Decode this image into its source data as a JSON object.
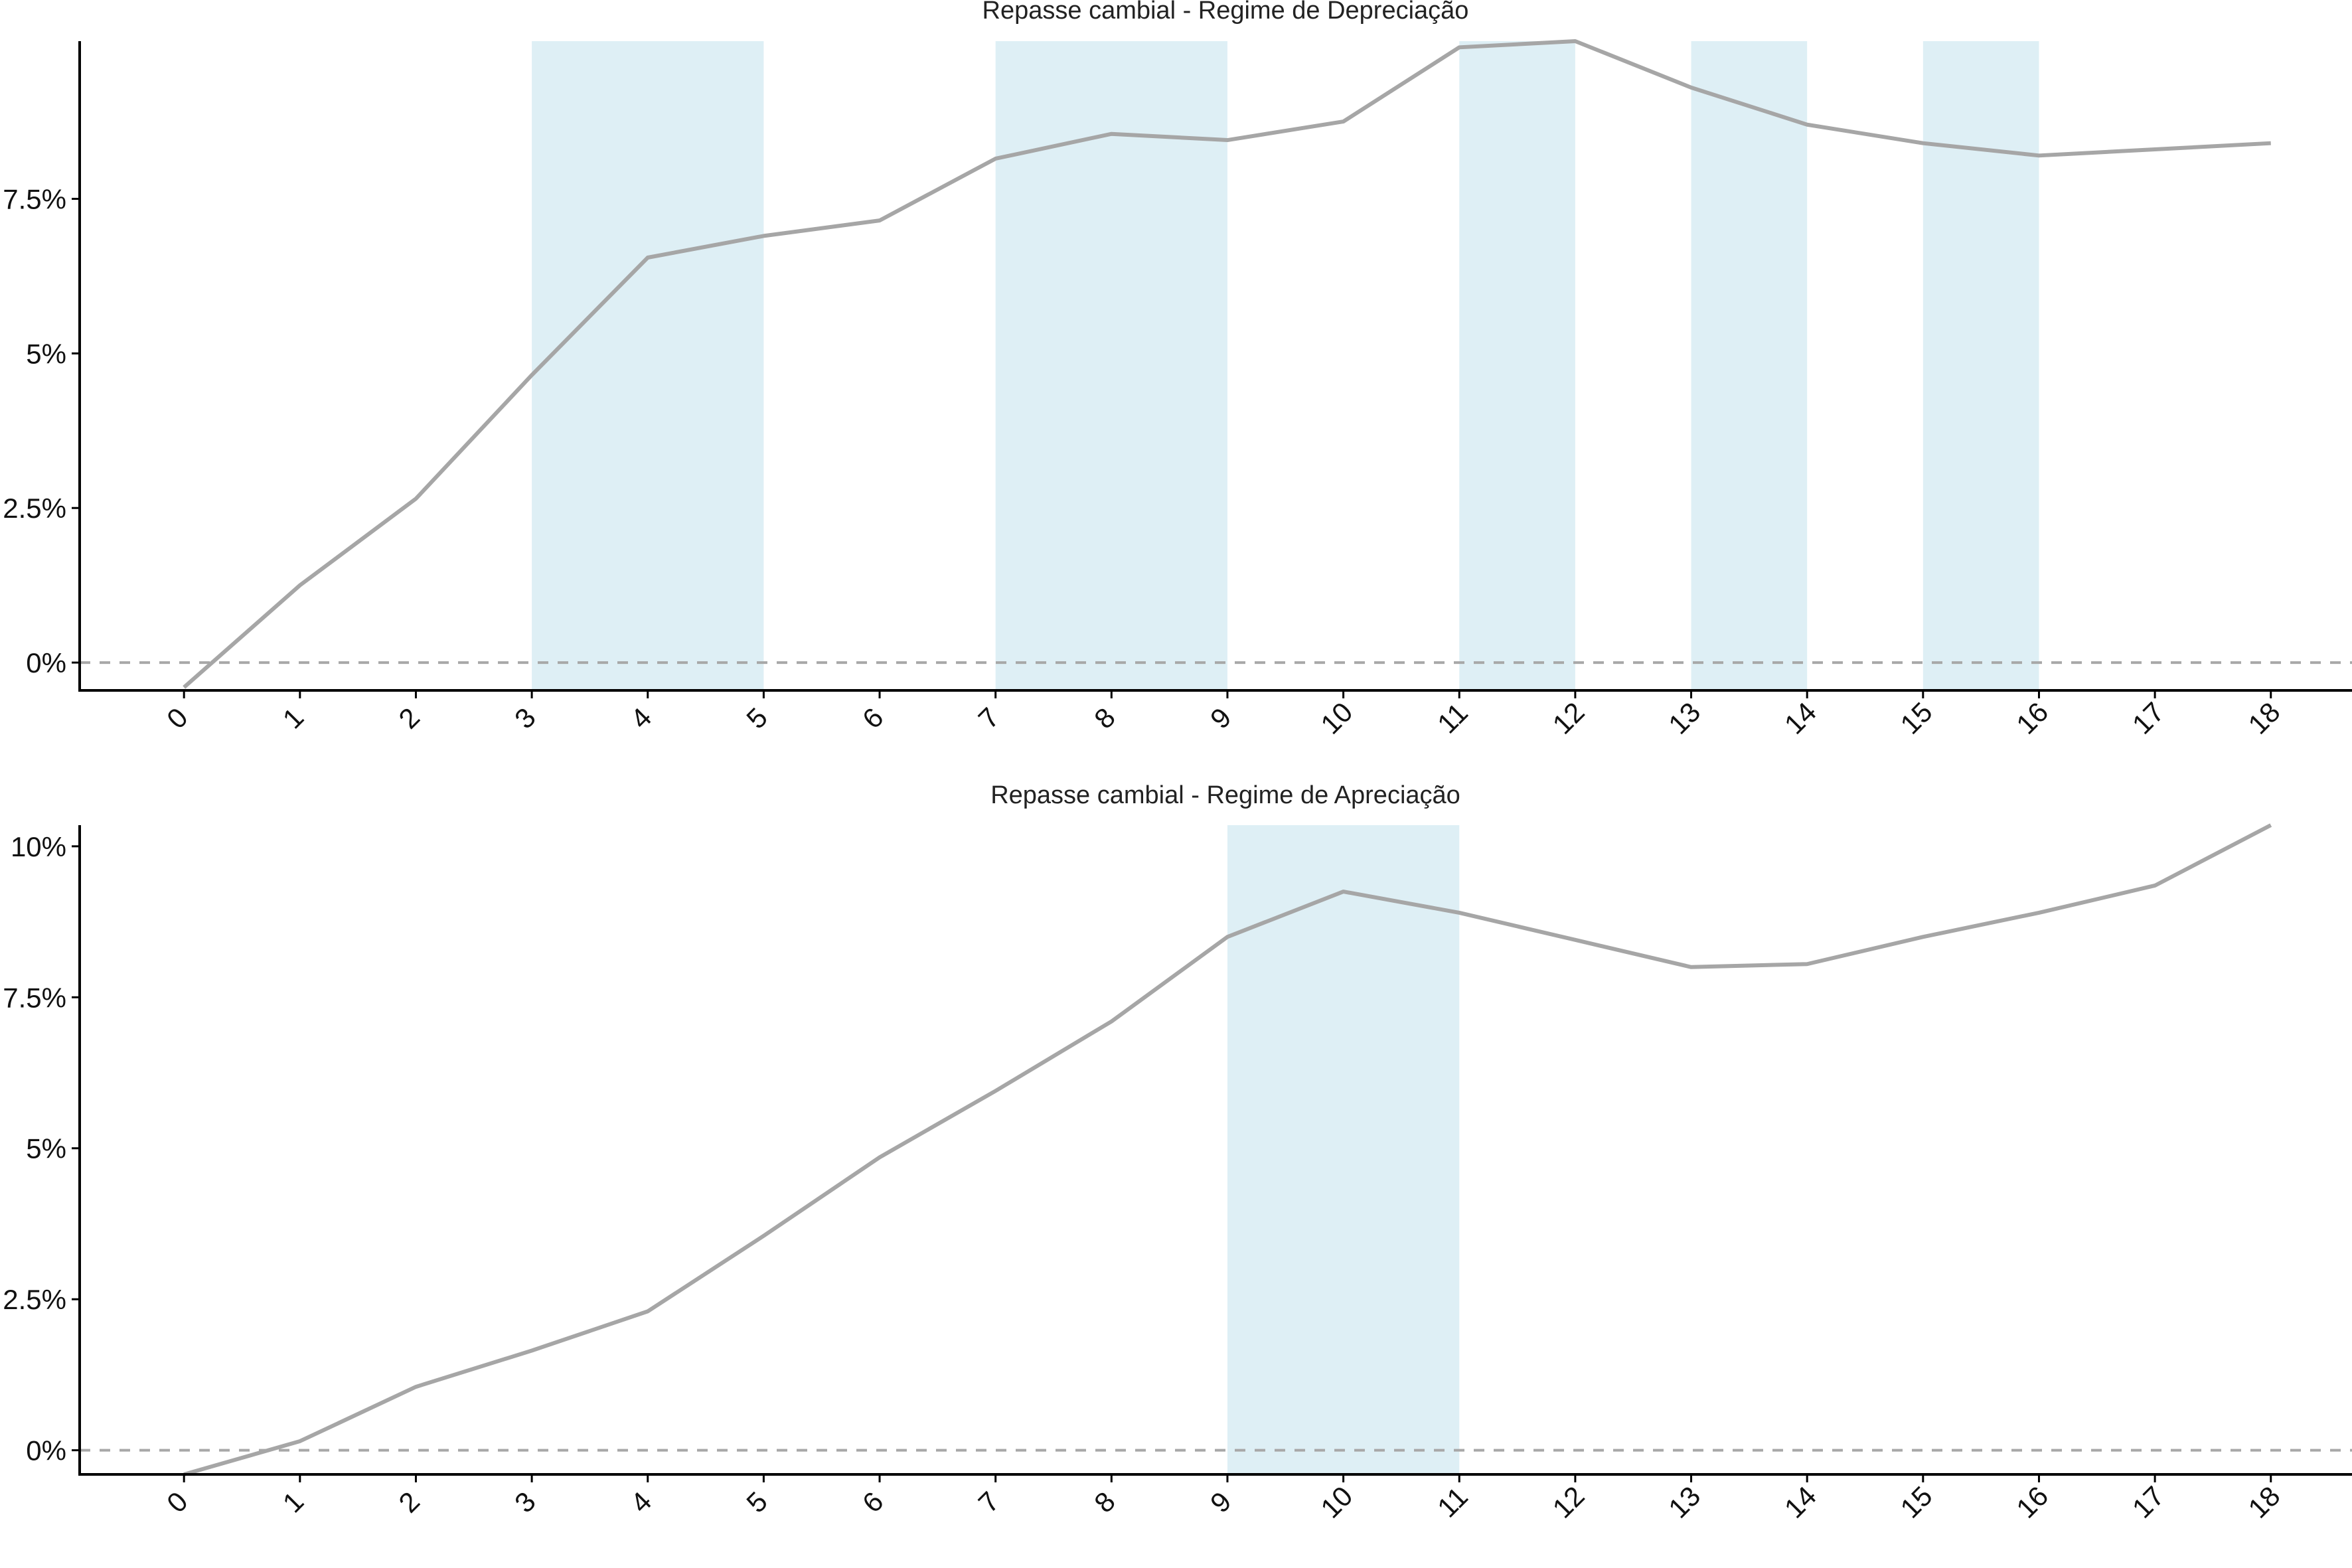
{
  "colors": {
    "series_line": "#a6a6a6",
    "highlight_band": "#deeff5",
    "zero_line": "#a8a8a8",
    "axis": "#000000"
  },
  "chart_data": [
    {
      "type": "line",
      "title": "Repasse cambial -  Regime de Depreciação",
      "xlabel": "",
      "ylabel": "",
      "x": [
        0,
        1,
        2,
        3,
        4,
        5,
        6,
        7,
        8,
        9,
        10,
        11,
        12,
        13,
        14,
        15,
        16,
        17,
        18
      ],
      "x_tick_labels": [
        "0",
        "1",
        "2",
        "3",
        "4",
        "5",
        "6",
        "7",
        "8",
        "9",
        "10",
        "11",
        "12",
        "13",
        "14",
        "15",
        "16",
        "17",
        "18"
      ],
      "series": [
        {
          "values": [
            -0.4,
            1.25,
            2.65,
            4.65,
            6.55,
            6.9,
            7.15,
            8.15,
            8.55,
            8.45,
            8.75,
            9.95,
            10.05,
            9.3,
            8.7,
            8.4,
            8.2,
            8.3,
            8.4
          ]
        }
      ],
      "highlight_bands": [
        [
          3,
          5
        ],
        [
          7,
          9
        ],
        [
          11,
          12
        ],
        [
          13,
          14
        ],
        [
          15,
          16
        ]
      ],
      "reference_line": 0,
      "y_ticks": [
        0,
        2.5,
        5,
        7.5
      ],
      "y_tick_labels": [
        "0%",
        "2.5%",
        "5%",
        "7.5%"
      ],
      "ylim": [
        -0.45,
        10.05
      ],
      "xlim": [
        -0.9,
        18.7
      ],
      "grid": false,
      "legend": "none"
    },
    {
      "type": "line",
      "title": "Repasse cambial -  Regime de Apreciação",
      "xlabel": "",
      "ylabel": "",
      "x": [
        0,
        1,
        2,
        3,
        4,
        5,
        6,
        7,
        8,
        9,
        10,
        11,
        12,
        13,
        14,
        15,
        16,
        17,
        18
      ],
      "x_tick_labels": [
        "0",
        "1",
        "2",
        "3",
        "4",
        "5",
        "6",
        "7",
        "8",
        "9",
        "10",
        "11",
        "12",
        "13",
        "14",
        "15",
        "16",
        "17",
        "18"
      ],
      "series": [
        {
          "values": [
            -0.4,
            0.15,
            1.05,
            1.65,
            2.3,
            3.55,
            4.85,
            5.95,
            7.1,
            8.5,
            9.25,
            8.9,
            8.45,
            8.0,
            8.05,
            8.5,
            8.9,
            9.35,
            10.35
          ]
        }
      ],
      "highlight_bands": [
        [
          9,
          11
        ]
      ],
      "reference_line": 0,
      "y_ticks": [
        0,
        2.5,
        5,
        7.5,
        10
      ],
      "y_tick_labels": [
        "0%",
        "2.5%",
        "5%",
        "7.5%",
        "10%"
      ],
      "ylim": [
        -0.4,
        10.35
      ],
      "xlim": [
        -0.9,
        18.7
      ],
      "grid": false,
      "legend": "none"
    }
  ]
}
